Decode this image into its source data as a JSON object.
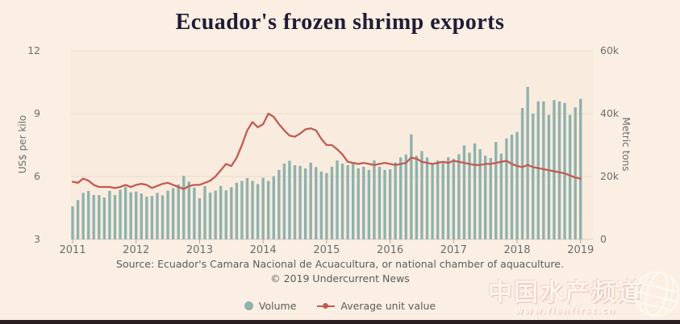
{
  "title": "Ecuador's frozen shrimp exports",
  "colors": {
    "background": "#faefe2",
    "plot_tint": "rgba(248,210,195,0.12)",
    "bar": "#8eb2ae",
    "line": "#c15b52",
    "grid": "#eadcc9",
    "baseline": "#d9c9b8",
    "tick": "#b5a694",
    "bottom_strip": "#2a1e20"
  },
  "source": {
    "line1": "Source: Ecuador's Camara Nacional de Acuacultura, or national chamber of aquaculture.",
    "line2": "© 2019 Undercurrent News"
  },
  "legend": [
    {
      "label": "Volume",
      "color": "#8eb2ae",
      "marker": "circle"
    },
    {
      "label": "Average unit value",
      "color": "#c15b52",
      "marker": "line-dot"
    }
  ],
  "watermark": {
    "text": "中国水产频道",
    "url": "www.fishfirst.cn"
  },
  "chart_data": {
    "type": "combo-bar-line-dual-axis",
    "title": "Ecuador's frozen shrimp exports",
    "x_axis": {
      "ticks": [
        "2011",
        "2012",
        "2013",
        "2014",
        "2015",
        "2016",
        "2017",
        "2018",
        "2019"
      ]
    },
    "left_axis": {
      "label": "US$ per kilo",
      "ticks": [
        3,
        6,
        9,
        12
      ],
      "range": [
        3,
        12
      ]
    },
    "right_axis": {
      "label": "Metric tons",
      "ticks": [
        "0",
        "20k",
        "40k",
        "60k"
      ],
      "range": [
        0,
        60000
      ]
    },
    "grid": "horizontal-only",
    "legend_position": "bottom-center",
    "frequency": "monthly",
    "series_info": [
      {
        "name": "Volume",
        "type": "bar",
        "axis": "right",
        "unit": "metric tons"
      },
      {
        "name": "Average unit value",
        "type": "line",
        "axis": "left",
        "unit": "US$ per kilo"
      }
    ],
    "volume_by_year": {
      "2011": [
        10500,
        12500,
        14800,
        15400,
        14100,
        14100,
        13300,
        15400,
        14100,
        15800,
        16700,
        15000
      ],
      "2012": [
        15200,
        14600,
        13600,
        13800,
        14800,
        14000,
        15500,
        16300,
        17500,
        20200,
        18400,
        16500
      ],
      "2013": [
        13100,
        17000,
        14900,
        15500,
        17000,
        15600,
        16600,
        18000,
        18600,
        19500,
        18600,
        17600
      ],
      "2014": [
        19600,
        18600,
        20100,
        22100,
        24100,
        25000,
        23600,
        23400,
        22600,
        24400,
        23000,
        21600
      ],
      "2015": [
        21100,
        23100,
        25100,
        24100,
        23600,
        24100,
        22600,
        23100,
        22100,
        25100,
        23100,
        22100
      ],
      "2016": [
        22300,
        24500,
        26100,
        27000,
        33400,
        26600,
        28100,
        26100,
        24100,
        25100,
        24300,
        26100
      ],
      "2017": [
        25600,
        27100,
        29900,
        27600,
        30500,
        28700,
        26600,
        25900,
        31000,
        27300,
        32100,
        33300
      ],
      "2018": [
        34200,
        41800,
        48500,
        40000,
        43900,
        43900,
        39600,
        44300,
        43900,
        43400,
        39600,
        42000
      ],
      "2019": [
        44700
      ]
    },
    "unit_value_by_year": {
      "2011": [
        5.75,
        5.7,
        5.9,
        5.8,
        5.6,
        5.5,
        5.5,
        5.5,
        5.45,
        5.5,
        5.6,
        5.5
      ],
      "2012": [
        5.6,
        5.65,
        5.6,
        5.45,
        5.55,
        5.65,
        5.7,
        5.6,
        5.5,
        5.4,
        5.55,
        5.6
      ],
      "2013": [
        5.6,
        5.7,
        5.8,
        6.0,
        6.3,
        6.6,
        6.5,
        6.9,
        7.5,
        8.2,
        8.6,
        8.35
      ],
      "2014": [
        8.5,
        9.0,
        8.85,
        8.5,
        8.2,
        7.95,
        7.9,
        8.05,
        8.25,
        8.3,
        8.2,
        7.8
      ],
      "2015": [
        7.5,
        7.5,
        7.3,
        7.05,
        6.7,
        6.65,
        6.6,
        6.65,
        6.6,
        6.55,
        6.6,
        6.65
      ],
      "2016": [
        6.6,
        6.55,
        6.6,
        6.65,
        6.9,
        6.85,
        6.7,
        6.65,
        6.6,
        6.65,
        6.7,
        6.65
      ],
      "2017": [
        6.75,
        6.7,
        6.65,
        6.6,
        6.55,
        6.55,
        6.6,
        6.6,
        6.65,
        6.7,
        6.75,
        6.6
      ],
      "2018": [
        6.5,
        6.45,
        6.55,
        6.45,
        6.4,
        6.35,
        6.3,
        6.25,
        6.2,
        6.15,
        6.05,
        5.95
      ],
      "2019": [
        5.9
      ]
    }
  }
}
